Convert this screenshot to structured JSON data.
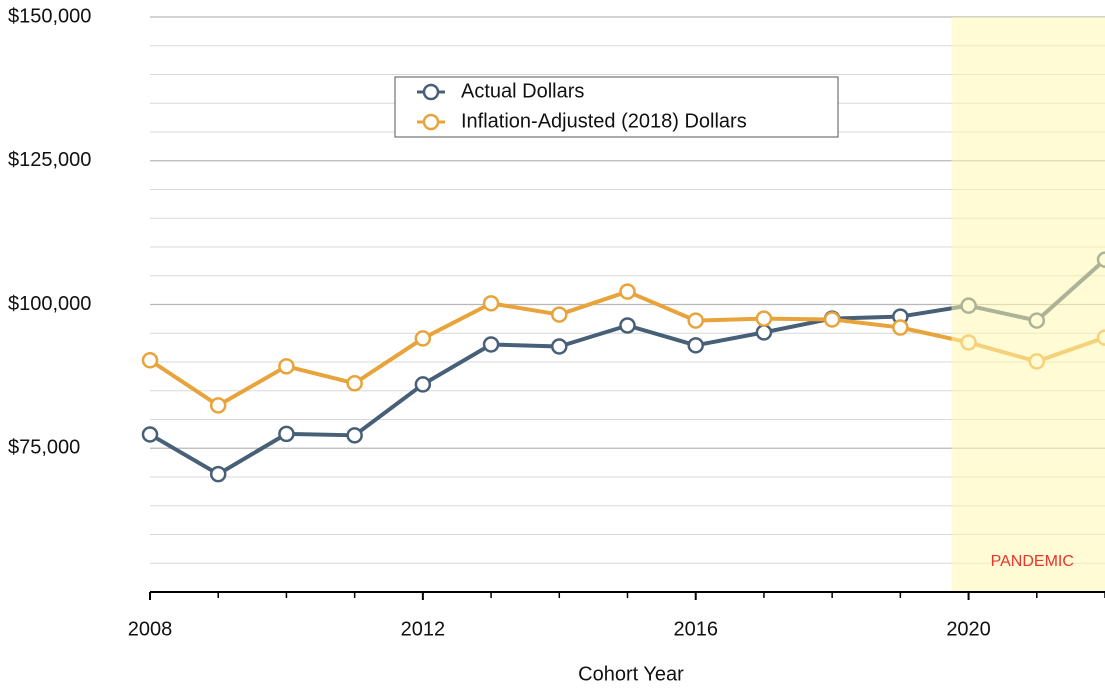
{
  "chart_data": {
    "type": "line",
    "x_label": "Cohort Year",
    "x": [
      2008,
      2009,
      2010,
      2011,
      2012,
      2013,
      2014,
      2015,
      2016,
      2017,
      2018,
      2019,
      2020,
      2021,
      2022
    ],
    "series": [
      {
        "name": "Actual Dollars",
        "color": "#485f78",
        "values": [
          77400,
          70500,
          77500,
          77250,
          86100,
          93050,
          92700,
          96350,
          92900,
          95150,
          97550,
          97900,
          99800,
          97200,
          107800
        ]
      },
      {
        "name": "Inflation-Adjusted (2018) Dollars",
        "color": "#e8a33a",
        "values": [
          90300,
          82450,
          89250,
          86300,
          94100,
          100200,
          98250,
          102250,
          97200,
          97550,
          97400,
          96000,
          93400,
          90100,
          94250
        ]
      }
    ],
    "xlim": [
      2008,
      2022
    ],
    "xticks": [
      2008,
      2012,
      2016,
      2020
    ],
    "minor_xticks_per_tick": 4,
    "ylim": [
      50000,
      150000
    ],
    "yticks": [
      {
        "value": 75000,
        "label": "$75,000"
      },
      {
        "value": 100000,
        "label": "$100,000"
      },
      {
        "value": 125000,
        "label": "$125,000"
      },
      {
        "value": 150000,
        "label": "$150,000"
      }
    ],
    "minor_grid_per_tick": 5,
    "grid": true,
    "legend": "top-center",
    "shaded_region": {
      "start": 2019.75,
      "label": "PANDEMIC",
      "color": "#fff8b0"
    }
  }
}
